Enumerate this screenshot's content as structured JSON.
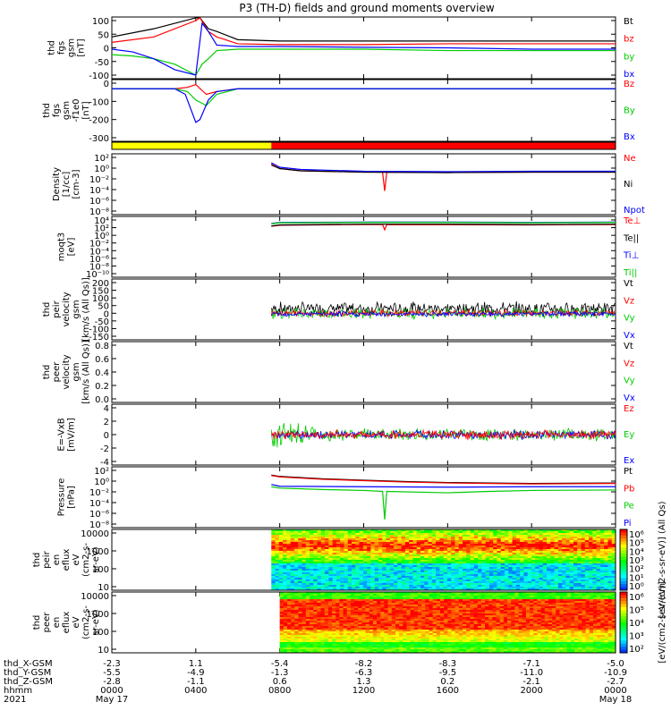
{
  "title": "P3 (TH-D) fields and ground moments overview",
  "colors": {
    "black": "#000000",
    "red": "#ff0000",
    "green": "#00cc00",
    "blue": "#0000ff",
    "yellow": "#ffff00",
    "bar_red": "#ff0000"
  },
  "chart_data": [
    {
      "type": "line",
      "panel": "fgs_gsm",
      "ylabel": [
        "thd",
        "fgs",
        "gsm",
        "[nT]"
      ],
      "yticks": [
        "100",
        "50",
        "0",
        "-50",
        "-100"
      ],
      "ylim": [
        -100,
        100
      ],
      "legend": [
        {
          "label": "Bt",
          "color": "black"
        },
        {
          "label": "bz",
          "color": "red"
        },
        {
          "label": "by",
          "color": "green"
        },
        {
          "label": "bx",
          "color": "blue"
        }
      ],
      "series": [
        {
          "name": "Bt",
          "color": "black",
          "x": [
            0,
            2,
            4,
            4.2,
            4.6,
            5,
            6,
            8,
            12,
            16,
            20,
            24
          ],
          "y": [
            40,
            70,
            110,
            110,
            70,
            60,
            30,
            25,
            25,
            25,
            25,
            25
          ]
        },
        {
          "name": "bz",
          "color": "red",
          "x": [
            0,
            2,
            4,
            4.2,
            4.6,
            5,
            6,
            8,
            12,
            16,
            20,
            24
          ],
          "y": [
            20,
            40,
            100,
            110,
            60,
            40,
            15,
            12,
            12,
            15,
            15,
            15
          ]
        },
        {
          "name": "by",
          "color": "green",
          "x": [
            0,
            1,
            2,
            3,
            4,
            4.3,
            4.6,
            5,
            6,
            8,
            12,
            16,
            20,
            24
          ],
          "y": [
            -25,
            -30,
            -40,
            -60,
            -100,
            -60,
            -40,
            -10,
            -5,
            -5,
            -5,
            -10,
            -10,
            -10
          ]
        },
        {
          "name": "bx",
          "color": "blue",
          "x": [
            0,
            1,
            2,
            3,
            4,
            4.3,
            4.6,
            5,
            6,
            8,
            12,
            16,
            20,
            24
          ],
          "y": [
            -5,
            -15,
            -40,
            -80,
            -100,
            90,
            60,
            10,
            5,
            5,
            2,
            0,
            -5,
            -5
          ]
        }
      ]
    },
    {
      "type": "line",
      "panel": "fgs_gsm_dc",
      "ylabel": [
        "thd",
        "fgs",
        "gsm",
        "-f1e0",
        "[nT]"
      ],
      "yticks": [
        "0",
        "-100",
        "-200",
        "-300"
      ],
      "ylim": [
        -350,
        40
      ],
      "legend": [
        {
          "label": "Bz",
          "color": "red"
        },
        {
          "label": "By",
          "color": "green"
        },
        {
          "label": "Bx",
          "color": "blue"
        }
      ],
      "series": [
        {
          "name": "Bz",
          "color": "red",
          "x": [
            0,
            3,
            3.6,
            4,
            4.5,
            5,
            6,
            24
          ],
          "y": [
            0,
            0,
            10,
            30,
            -40,
            -20,
            0,
            0
          ]
        },
        {
          "name": "By",
          "color": "green",
          "x": [
            0,
            3,
            3.6,
            4,
            4.5,
            5,
            6,
            24
          ],
          "y": [
            0,
            0,
            -20,
            -80,
            -120,
            -40,
            0,
            0
          ]
        },
        {
          "name": "Bx",
          "color": "blue",
          "x": [
            0,
            3,
            3.5,
            4,
            4.2,
            4.6,
            5,
            6,
            24
          ],
          "y": [
            0,
            0,
            -40,
            -240,
            -220,
            -80,
            -20,
            0,
            0
          ]
        }
      ]
    },
    {
      "type": "bar",
      "panel": "mode_bar",
      "segments": [
        {
          "from": 0,
          "to": 7.6,
          "color": "yellow"
        },
        {
          "from": 7.6,
          "to": 24,
          "color": "bar_red"
        }
      ]
    },
    {
      "type": "line",
      "panel": "density",
      "log": true,
      "ylabel": [
        "Density",
        "[1/cc]",
        "[cm-3]"
      ],
      "yticks": [
        "10²",
        "10⁰",
        "10⁻²",
        "10⁻⁴",
        "10⁻⁶",
        "10⁻⁸"
      ],
      "ylim": [
        -9,
        3
      ],
      "legend": [
        {
          "label": "Ne",
          "color": "red"
        },
        {
          "label": "Ni",
          "color": "black"
        },
        {
          "label": "Npot",
          "color": "blue"
        }
      ],
      "series": [
        {
          "name": "Ne",
          "color": "red",
          "x": [
            7.6,
            8,
            9,
            12,
            12.9,
            13,
            13.1,
            16,
            20,
            24
          ],
          "y": [
            1.5,
            0.5,
            0,
            -0.3,
            -0.3,
            -4.5,
            -0.3,
            -0.4,
            -0.3,
            -0.3
          ]
        },
        {
          "name": "Ni",
          "color": "black",
          "x": [
            7.6,
            8,
            9,
            12,
            16,
            20,
            24
          ],
          "y": [
            1.3,
            0.5,
            0,
            -0.3,
            -0.4,
            -0.3,
            -0.3
          ]
        },
        {
          "name": "Npot",
          "color": "blue",
          "x": [
            7.6,
            8,
            9,
            12,
            16,
            20,
            24
          ],
          "y": [
            1.8,
            0.8,
            0.3,
            -0.1,
            -0.2,
            -0.1,
            -0.1
          ]
        }
      ]
    },
    {
      "type": "line",
      "panel": "temperature",
      "log": true,
      "ylabel": [
        "moqt3",
        "[eV]"
      ],
      "yticks": [
        "10⁴",
        "10²",
        "10⁰",
        "10⁻²",
        "10⁻⁴",
        "10⁻⁶",
        "10⁻⁸",
        "10⁻¹⁰"
      ],
      "ylim": [
        -11,
        4.3
      ],
      "legend": [
        {
          "label": "Te⊥",
          "color": "red"
        },
        {
          "label": "Te||",
          "color": "black"
        },
        {
          "label": "Ti⊥",
          "color": "blue"
        },
        {
          "label": "Ti||",
          "color": "green"
        }
      ],
      "series": [
        {
          "name": "Te⊥",
          "color": "red",
          "x": [
            7.6,
            8,
            12,
            12.9,
            13,
            13.1,
            20,
            24
          ],
          "y": [
            2.5,
            2.8,
            3,
            3,
            1.5,
            3,
            2.9,
            3
          ]
        },
        {
          "name": "Te||",
          "color": "black",
          "x": [
            7.6,
            8,
            12,
            16,
            20,
            24
          ],
          "y": [
            2.6,
            2.9,
            3.1,
            3.1,
            3,
            3.1
          ]
        },
        {
          "name": "Ti⊥",
          "color": "blue",
          "x": [
            7.6,
            8,
            12,
            16,
            20,
            24
          ],
          "y": [
            3.3,
            3.6,
            3.7,
            3.7,
            3.6,
            3.7
          ]
        },
        {
          "name": "Ti||",
          "color": "green",
          "x": [
            7.6,
            8,
            12,
            16,
            20,
            24
          ],
          "y": [
            3.2,
            3.5,
            3.6,
            3.6,
            3.5,
            3.6
          ]
        }
      ]
    },
    {
      "type": "line",
      "panel": "peir_velocity",
      "ylabel": [
        "thd",
        "peir",
        "velocity",
        "gsm",
        "[km/s (All Qs)]"
      ],
      "yticks": [
        "200",
        "150",
        "100",
        "50",
        "0",
        "-50",
        "-100",
        "-150"
      ],
      "ylim": [
        -150,
        200
      ],
      "legend": [
        {
          "label": "Vt",
          "color": "black"
        },
        {
          "label": "Vz",
          "color": "red"
        },
        {
          "label": "Vy",
          "color": "green"
        },
        {
          "label": "Vx",
          "color": "blue"
        }
      ],
      "noise": [
        {
          "name": "Vt",
          "color": "black",
          "from": 7.6,
          "to": 24,
          "center": 30,
          "amp": 50
        },
        {
          "name": "Vy",
          "color": "green",
          "from": 7.6,
          "to": 24,
          "center": 0,
          "amp": 40
        },
        {
          "name": "Vz",
          "color": "red",
          "from": 7.6,
          "to": 24,
          "center": 0,
          "amp": 25
        },
        {
          "name": "Vx",
          "color": "blue",
          "from": 7.6,
          "to": 24,
          "center": -5,
          "amp": 20
        }
      ]
    },
    {
      "type": "line",
      "panel": "peer_velocity",
      "ylabel": [
        "thd",
        "peer",
        "velocity",
        "gsm",
        "[km/s (All Qs)]"
      ],
      "yticks": [
        "0.8",
        "0.6",
        "0.4",
        "0.2",
        "0.0"
      ],
      "ylim": [
        0,
        1
      ],
      "legend": [
        {
          "label": "Vt",
          "color": "black"
        },
        {
          "label": "Vz",
          "color": "red"
        },
        {
          "label": "Vy",
          "color": "green"
        },
        {
          "label": "Vx",
          "color": "blue"
        }
      ],
      "series": []
    },
    {
      "type": "line",
      "panel": "efield",
      "ylabel": [
        "E=-VxB",
        "[mV/m]"
      ],
      "yticks": [
        "4",
        "2",
        "0",
        "-2",
        "-4"
      ],
      "ylim": [
        -4.4,
        4.4
      ],
      "legend": [
        {
          "label": "Ez",
          "color": "red"
        },
        {
          "label": "Ey",
          "color": "green"
        },
        {
          "label": "Ex",
          "color": "blue"
        }
      ],
      "noise": [
        {
          "name": "Ey",
          "color": "green",
          "from": 7.6,
          "to": 24,
          "center": 0,
          "amp": 1.2,
          "decay": true
        },
        {
          "name": "Ex",
          "color": "blue",
          "from": 7.6,
          "to": 24,
          "center": 0,
          "amp": 0.8
        },
        {
          "name": "Ez",
          "color": "red",
          "from": 7.6,
          "to": 24,
          "center": 0,
          "amp": 0.9
        }
      ]
    },
    {
      "type": "line",
      "panel": "pressure",
      "log": true,
      "ylabel": [
        "Pressure",
        "[nPa]"
      ],
      "yticks": [
        "10²",
        "10⁰",
        "10⁻²",
        "10⁻⁴",
        "10⁻⁶",
        "10⁻⁸"
      ],
      "ylim": [
        -9,
        2.5
      ],
      "legend": [
        {
          "label": "Pt",
          "color": "black"
        },
        {
          "label": "Pb",
          "color": "red"
        },
        {
          "label": "Pe",
          "color": "green"
        },
        {
          "label": "Pi",
          "color": "blue"
        }
      ],
      "series": [
        {
          "name": "Pt",
          "color": "black",
          "x": [
            7.6,
            8,
            10,
            12,
            14,
            16,
            18,
            20,
            24
          ],
          "y": [
            1.5,
            1.2,
            0.7,
            0.4,
            0.1,
            -0.1,
            -0.2,
            -0.3,
            -0.2
          ]
        },
        {
          "name": "Pb",
          "color": "red",
          "x": [
            7.6,
            8,
            10,
            12,
            14,
            16,
            18,
            20,
            24
          ],
          "y": [
            1.4,
            1.1,
            0.6,
            0.3,
            0.0,
            -0.2,
            -0.3,
            -0.4,
            -0.3
          ]
        },
        {
          "name": "Pi",
          "color": "blue",
          "x": [
            7.6,
            8,
            12,
            16,
            20,
            24
          ],
          "y": [
            -0.5,
            -0.9,
            -1.0,
            -1.1,
            -1.0,
            -1.0
          ]
        },
        {
          "name": "Pe",
          "color": "green",
          "x": [
            7.6,
            8,
            10,
            12,
            12.9,
            13,
            13.1,
            16,
            18,
            20,
            24
          ],
          "y": [
            -1.0,
            -1.3,
            -1.6,
            -1.8,
            -2,
            -8,
            -2,
            -2.3,
            -2.0,
            -1.8,
            -1.7
          ]
        }
      ]
    },
    {
      "type": "heatmap",
      "panel": "peir_spectrogram",
      "ylabel": [
        "thd",
        "peir",
        "en",
        "eflux",
        "eV",
        "(cm2-s-",
        "sr-eV)"
      ],
      "yticks": [
        "10000",
        "1000",
        "100",
        "10"
      ],
      "ylim_log": [
        0.7,
        4.5
      ],
      "colorbar_label": "[eV/(cm2-s-sr-eV)] (All Qs)",
      "colorbar_ticks": [
        "10⁶",
        "10⁵",
        "10⁴",
        "10³",
        "10²",
        "10¹",
        "10⁰"
      ],
      "start_hour": 7.6
    },
    {
      "type": "heatmap",
      "panel": "peer_spectrogram",
      "ylabel": [
        "thd",
        "peer",
        "en",
        "eflux",
        "eV",
        "(cm2-s-",
        "sr-eV)"
      ],
      "yticks": [
        "10000",
        "1000",
        "100",
        "10"
      ],
      "ylim_log": [
        0.7,
        4.5
      ],
      "colorbar_label": "[eV/(cm2-s-sr-eV)]",
      "colorbar_ticks": [
        "10⁶",
        "10⁵",
        "10⁴",
        "10³",
        "10²"
      ],
      "start_hour": 8.0
    }
  ],
  "xaxis": {
    "range_hours": [
      0,
      24
    ],
    "row_labels": [
      "thd_X-GSM",
      "thd_Y-GSM",
      "thd_Z-GSM",
      "hhmm",
      "2021"
    ],
    "ticks": [
      {
        "hour": 0,
        "x": "-2.3",
        "y": "-5.5",
        "z": "-2.8",
        "hhmm": "0000",
        "date": "May 17"
      },
      {
        "hour": 4,
        "x": "1.1",
        "y": "-4.9",
        "z": "-1.1",
        "hhmm": "0400",
        "date": ""
      },
      {
        "hour": 8,
        "x": "-5.4",
        "y": "-1.3",
        "z": "0.6",
        "hhmm": "0800",
        "date": ""
      },
      {
        "hour": 12,
        "x": "-8.2",
        "y": "-6.3",
        "z": "1.3",
        "hhmm": "1200",
        "date": ""
      },
      {
        "hour": 16,
        "x": "-8.3",
        "y": "-9.5",
        "z": "0.2",
        "hhmm": "1600",
        "date": ""
      },
      {
        "hour": 20,
        "x": "-7.1",
        "y": "-11.0",
        "z": "-2.1",
        "hhmm": "2000",
        "date": ""
      },
      {
        "hour": 24,
        "x": "-5.0",
        "y": "-10.9",
        "z": "-2.7",
        "hhmm": "0000",
        "date": "May 18"
      }
    ]
  }
}
